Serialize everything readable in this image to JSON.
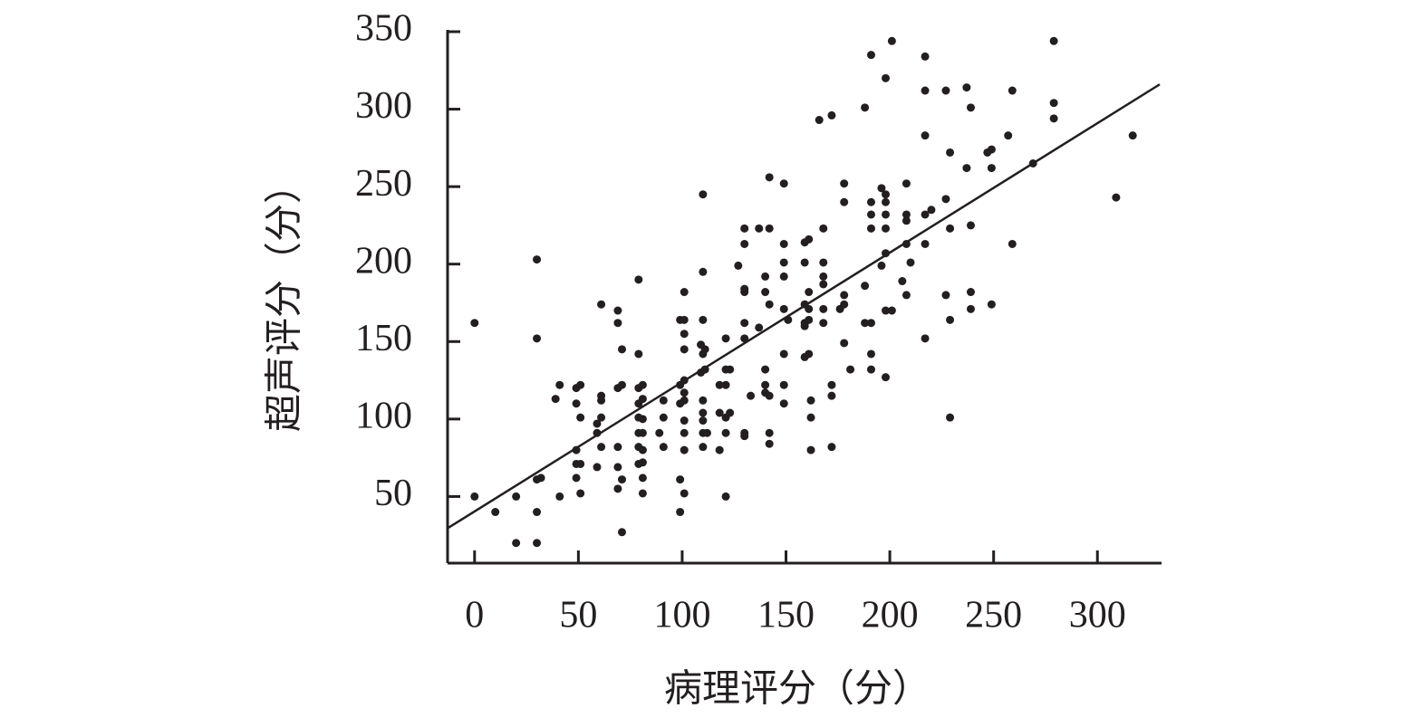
{
  "chart_data": {
    "type": "scatter",
    "x_label": "病理评分（分）",
    "y_label": "超声评分（分）",
    "color": "#231f20",
    "xlim": [
      -13,
      330
    ],
    "xticks": [
      0,
      50,
      100,
      150,
      200,
      250,
      300
    ],
    "ylim": [
      7,
      350
    ],
    "yticks": [
      50,
      100,
      150,
      200,
      250,
      300,
      350
    ],
    "x": [
      0,
      0,
      10,
      20,
      20,
      30,
      30,
      30,
      32,
      30,
      30,
      39,
      41,
      41,
      49,
      51,
      49,
      51,
      49,
      49,
      51,
      49,
      51,
      61,
      61,
      61,
      59,
      59,
      61,
      61,
      59,
      69,
      69,
      69,
      71,
      71,
      69,
      69,
      71,
      69,
      71,
      79,
      79,
      79,
      81,
      79,
      81,
      79,
      81,
      79,
      81,
      79,
      81,
      79,
      81,
      81,
      81,
      89,
      91,
      91,
      91,
      99,
      101,
      101,
      101,
      101,
      99,
      101,
      101,
      99,
      101,
      101,
      101,
      101,
      99,
      101,
      99,
      110,
      110,
      110,
      109,
      111,
      110,
      109,
      111,
      110,
      110,
      110,
      110,
      112,
      110,
      118,
      121,
      121,
      121,
      123,
      118,
      121,
      123,
      121,
      118,
      121,
      127,
      130,
      130,
      130,
      130,
      130,
      130,
      130,
      130,
      133,
      137,
      137,
      142,
      140,
      140,
      140,
      140,
      140,
      142,
      142,
      142,
      142,
      142,
      149,
      149,
      149,
      149,
      149,
      151,
      149,
      149,
      149,
      159,
      161,
      159,
      161,
      159,
      161,
      159,
      159,
      161,
      159,
      161,
      162,
      162,
      162,
      166,
      172,
      168,
      168,
      168,
      168,
      168,
      168,
      172,
      172,
      172,
      178,
      178,
      176,
      178,
      178,
      178,
      181,
      188,
      191,
      188,
      188,
      191,
      191,
      191,
      191,
      191,
      191,
      196,
      198,
      198,
      198,
      198,
      198,
      196,
      198,
      201,
      198,
      201,
      198,
      208,
      208,
      208,
      208,
      210,
      206,
      208,
      217,
      217,
      217,
      217,
      220,
      217,
      217,
      227,
      227,
      229,
      229,
      227,
      229,
      229,
      237,
      239,
      237,
      239,
      239,
      239,
      247,
      249,
      249,
      249,
      259,
      257,
      259,
      269,
      279,
      279,
      279,
      309,
      317
    ],
    "values": [
      162,
      50,
      40,
      50,
      20,
      203,
      152,
      61,
      62,
      40,
      20,
      113,
      122,
      50,
      120,
      122,
      110,
      101,
      80,
      71,
      71,
      62,
      52,
      174,
      115,
      112,
      97,
      91,
      101,
      82,
      69,
      170,
      162,
      120,
      122,
      145,
      82,
      69,
      61,
      55,
      27,
      190,
      142,
      120,
      122,
      110,
      113,
      101,
      100,
      91,
      91,
      82,
      80,
      71,
      72,
      62,
      52,
      91,
      112,
      101,
      82,
      164,
      164,
      182,
      155,
      145,
      122,
      125,
      117,
      110,
      112,
      99,
      91,
      80,
      61,
      52,
      40,
      245,
      195,
      164,
      148,
      145,
      142,
      130,
      132,
      112,
      104,
      99,
      91,
      91,
      82,
      122,
      122,
      152,
      132,
      132,
      104,
      101,
      104,
      91,
      80,
      50,
      199,
      223,
      213,
      184,
      182,
      162,
      152,
      91,
      89,
      115,
      223,
      159,
      223,
      192,
      182,
      132,
      122,
      117,
      91,
      84,
      256,
      174,
      115,
      252,
      213,
      201,
      192,
      171,
      164,
      142,
      122,
      110,
      214,
      216,
      201,
      182,
      174,
      171,
      162,
      160,
      164,
      140,
      142,
      112,
      101,
      80,
      293,
      296,
      223,
      201,
      192,
      187,
      171,
      162,
      122,
      115,
      82,
      252,
      240,
      171,
      180,
      174,
      149,
      132,
      301,
      335,
      186,
      162,
      162,
      142,
      132,
      240,
      232,
      223,
      249,
      245,
      240,
      232,
      223,
      207,
      199,
      170,
      170,
      127,
      344,
      320,
      252,
      232,
      228,
      213,
      201,
      189,
      180,
      334,
      312,
      283,
      232,
      235,
      213,
      152,
      312,
      242,
      272,
      223,
      180,
      164,
      101,
      314,
      301,
      262,
      225,
      182,
      171,
      272,
      274,
      262,
      174,
      312,
      283,
      213,
      265,
      344,
      304,
      294,
      243,
      283
    ],
    "fit_line": {
      "x": [
        -13,
        330
      ],
      "values": [
        29.5,
        316
      ],
      "color": "#231f20"
    }
  }
}
